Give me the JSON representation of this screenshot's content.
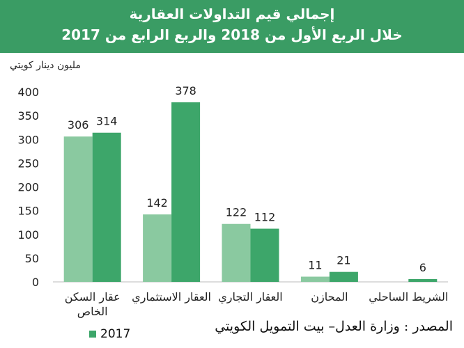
{
  "title": "إجمالي قيم التداولات العقارية",
  "subtitle": "خلال الربع الأول من 2018 والربع الرابع من 2017",
  "unit_label": "مليون دينار كويتي",
  "source": "المصدر : وزارة العدل– بيت التمويل الكويتي",
  "legend_visible": "2017",
  "colors": {
    "banner": "#3a9c64",
    "series_2017": "#8ac9a0",
    "series_2018": "#3da66a"
  },
  "chart_data": {
    "type": "bar",
    "categories": [
      "عقار السكن\nالخاص",
      "العقار الاستثماري",
      "العقار التجاري",
      "المحازن",
      "الشريط الساحلي"
    ],
    "series": [
      {
        "name": "2017",
        "values": [
          306,
          142,
          122,
          11,
          null
        ]
      },
      {
        "values": [
          314,
          378,
          112,
          21,
          6
        ]
      }
    ],
    "ylim": [
      0,
      400
    ],
    "yticks": [
      0,
      50,
      100,
      150,
      200,
      250,
      300,
      350,
      400
    ],
    "ylabel": "مليون دينار كويتي",
    "grid": false,
    "legend": "bottom-left"
  }
}
